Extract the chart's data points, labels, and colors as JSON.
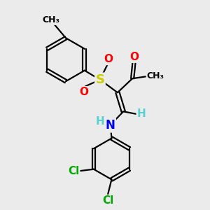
{
  "bg_color": "#ebebeb",
  "bond_color": "#000000",
  "bond_width": 1.6,
  "atom_colors": {
    "O": "#ff0000",
    "S": "#cccc00",
    "N": "#0000ee",
    "Cl": "#00aa00",
    "C": "#000000",
    "H": "#5ad0d0"
  },
  "font_size": 11,
  "font_size_small": 9,
  "font_size_label": 9
}
